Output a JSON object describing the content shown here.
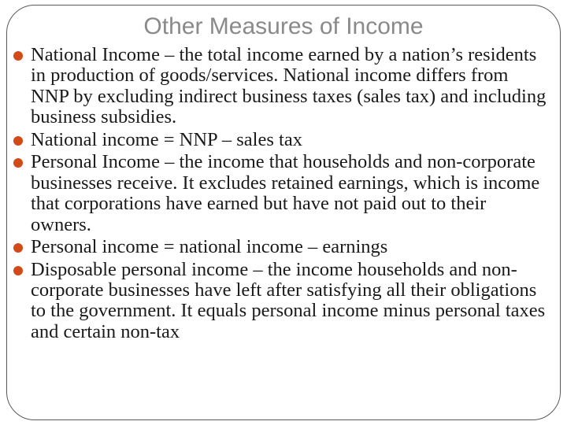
{
  "slide": {
    "title": "Other Measures of Income",
    "title_color": "#8a8a8a",
    "title_fontsize": 30,
    "bullet_color": "#d24a18",
    "text_color": "#1a1a1a",
    "body_fontsize": 24.5,
    "frame_border_color": "#595959",
    "frame_border_radius": 36,
    "background_color": "#ffffff",
    "bullets": [
      "National Income – the total income earned by a nation’s residents in production of goods/services. National income differs from NNP by excluding indirect business taxes (sales tax) and including business subsidies.",
      "National income = NNP – sales tax",
      "Personal Income – the income that households and non-corporate businesses receive. It excludes retained earnings, which is income that corporations have earned but have not paid out to their owners.",
      "Personal income = national income – earnings",
      "Disposable personal income – the income households and non-corporate businesses have left after satisfying all their obligations to the government. It equals personal income minus personal taxes and certain non-tax"
    ]
  }
}
